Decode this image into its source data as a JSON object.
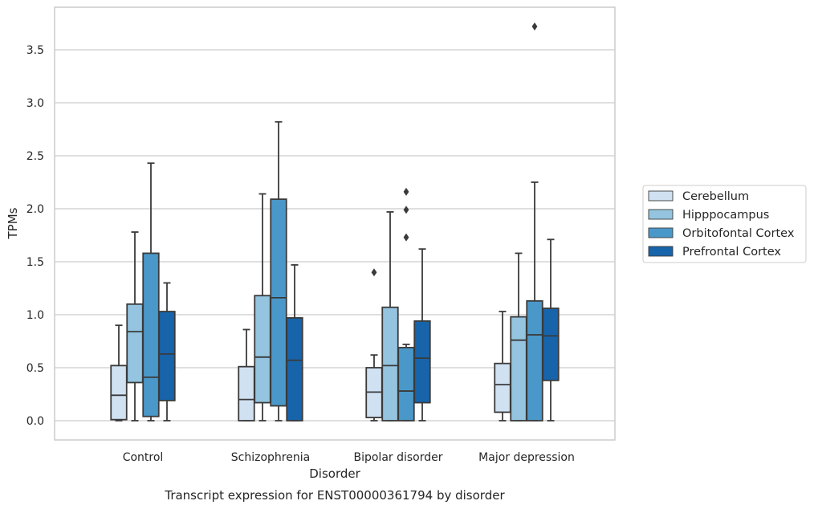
{
  "chart_data": {
    "type": "box",
    "title": "",
    "caption": "Transcript expression for ENST00000361794 by disorder",
    "xlabel": "Disorder",
    "ylabel": "TPMs",
    "ylim": [
      -0.18,
      3.9
    ],
    "yticks": [
      "0.0",
      "0.5",
      "1.0",
      "1.5",
      "2.0",
      "2.5",
      "3.0",
      "3.5"
    ],
    "grid": "horizontal",
    "legend_placement": "right",
    "categories": [
      "Control",
      "Schizophrenia",
      "Bipolar disorder",
      "Major depression"
    ],
    "series": [
      {
        "name": "Cerebellum",
        "color": "#d0e1f2",
        "boxes": [
          {
            "whislo": 0.0,
            "q1": 0.01,
            "med": 0.24,
            "q3": 0.52,
            "whishi": 0.9,
            "fliers": []
          },
          {
            "whislo": 0.0,
            "q1": 0.0,
            "med": 0.2,
            "q3": 0.51,
            "whishi": 0.86,
            "fliers": []
          },
          {
            "whislo": 0.0,
            "q1": 0.03,
            "med": 0.27,
            "q3": 0.5,
            "whishi": 0.62,
            "fliers": [
              1.4
            ]
          },
          {
            "whislo": 0.0,
            "q1": 0.08,
            "med": 0.34,
            "q3": 0.54,
            "whishi": 1.03,
            "fliers": []
          }
        ]
      },
      {
        "name": "Hipppocampus",
        "color": "#94c4df",
        "boxes": [
          {
            "whislo": 0.0,
            "q1": 0.36,
            "med": 0.84,
            "q3": 1.1,
            "whishi": 1.78,
            "fliers": []
          },
          {
            "whislo": 0.0,
            "q1": 0.17,
            "med": 0.6,
            "q3": 1.18,
            "whishi": 2.14,
            "fliers": []
          },
          {
            "whislo": 0.0,
            "q1": 0.0,
            "med": 0.52,
            "q3": 1.07,
            "whishi": 1.97,
            "fliers": []
          },
          {
            "whislo": 0.0,
            "q1": 0.0,
            "med": 0.76,
            "q3": 0.98,
            "whishi": 1.58,
            "fliers": []
          }
        ]
      },
      {
        "name": "Orbitofontal Cortex",
        "color": "#4a98c9",
        "boxes": [
          {
            "whislo": 0.0,
            "q1": 0.04,
            "med": 0.41,
            "q3": 1.58,
            "whishi": 2.43,
            "fliers": []
          },
          {
            "whislo": 0.0,
            "q1": 0.14,
            "med": 1.16,
            "q3": 2.09,
            "whishi": 2.82,
            "fliers": []
          },
          {
            "whislo": 0.0,
            "q1": 0.0,
            "med": 0.28,
            "q3": 0.69,
            "whishi": 0.72,
            "fliers": [
              1.73,
              1.99,
              2.16
            ]
          },
          {
            "whislo": 0.0,
            "q1": 0.0,
            "med": 0.81,
            "q3": 1.13,
            "whishi": 2.25,
            "fliers": [
              3.72
            ]
          }
        ]
      },
      {
        "name": "Prefrontal Cortex",
        "color": "#1764ab",
        "boxes": [
          {
            "whislo": 0.0,
            "q1": 0.19,
            "med": 0.63,
            "q3": 1.03,
            "whishi": 1.3,
            "fliers": []
          },
          {
            "whislo": 0.0,
            "q1": 0.0,
            "med": 0.57,
            "q3": 0.97,
            "whishi": 1.47,
            "fliers": []
          },
          {
            "whislo": 0.0,
            "q1": 0.17,
            "med": 0.59,
            "q3": 0.94,
            "whishi": 1.62,
            "fliers": []
          },
          {
            "whislo": 0.0,
            "q1": 0.38,
            "med": 0.8,
            "q3": 1.06,
            "whishi": 1.71,
            "fliers": []
          }
        ]
      }
    ]
  },
  "colors": {
    "box_edge": "#3a3a3a",
    "grid": "#cccccc",
    "frame": "#cccccc"
  }
}
